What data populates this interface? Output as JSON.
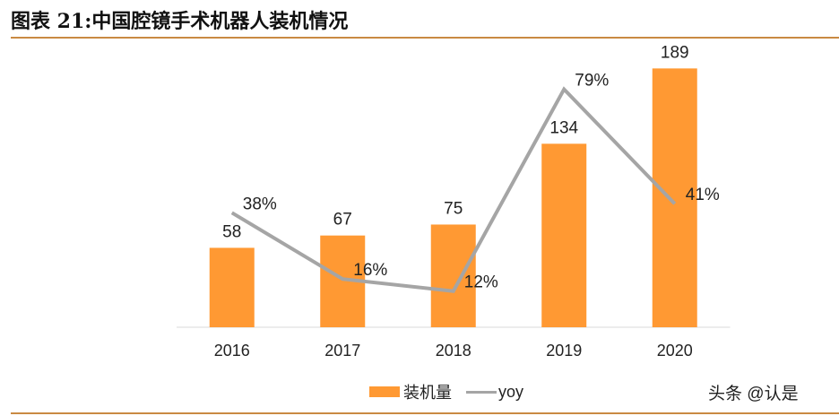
{
  "title": "图表 21:中国腔镜手术机器人装机情况",
  "watermark": "头条 @认是",
  "chart_data": {
    "type": "bar+line",
    "categories": [
      "2016",
      "2017",
      "2018",
      "2019",
      "2020"
    ],
    "series": [
      {
        "name": "装机量",
        "type": "bar",
        "axis": "left",
        "values": [
          58,
          67,
          75,
          134,
          189
        ],
        "labels": [
          "58",
          "67",
          "75",
          "134",
          "189"
        ],
        "color": "#FF9933"
      },
      {
        "name": "yoy",
        "type": "line",
        "axis": "right",
        "values": [
          0.38,
          0.16,
          0.12,
          0.79,
          0.41
        ],
        "labels": [
          "38%",
          "16%",
          "12%",
          "79%",
          "41%"
        ],
        "color": "#A5A5A5"
      }
    ],
    "ylim": [
      0,
      220
    ],
    "y2lim": [
      0,
      1
    ],
    "axes_visible": false,
    "grid": false,
    "legend": "bottom"
  }
}
